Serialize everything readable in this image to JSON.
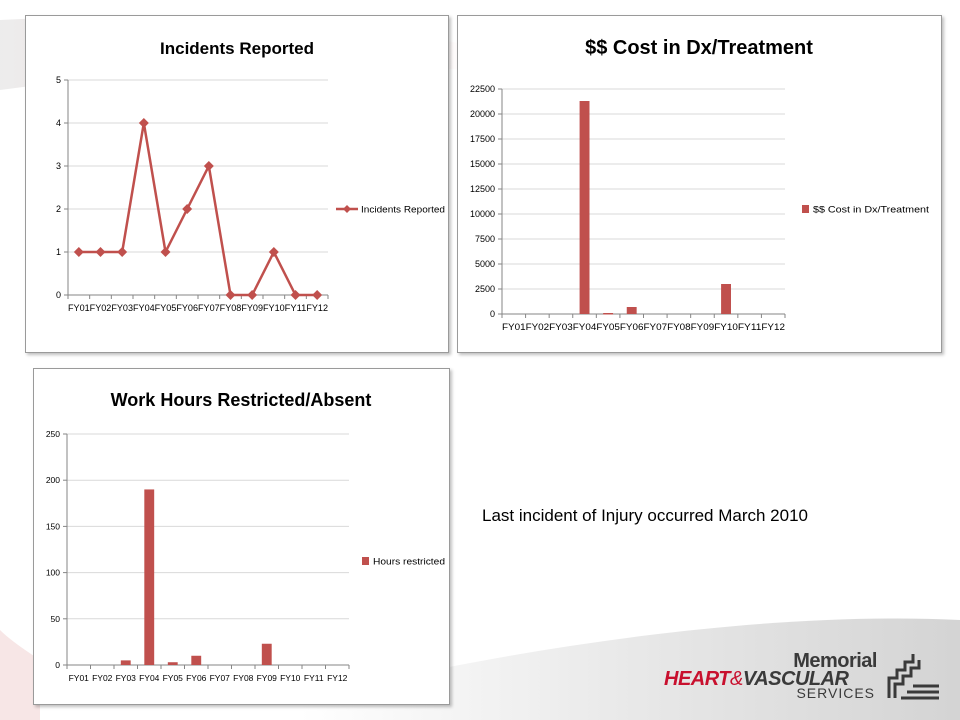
{
  "caption": "Last incident of Injury occurred March 2010",
  "logo": {
    "line1": "Memorial",
    "heart": "HEART",
    "amp": "&",
    "vascular": "VASCULAR",
    "services": "SERVICES"
  },
  "colors": {
    "series": "#c0504d",
    "grid": "#d9d9d9",
    "axis": "#868686",
    "brand_red": "#c8102e"
  },
  "chart_data": [
    {
      "type": "line",
      "title": "Incidents Reported",
      "categories": [
        "FY01",
        "FY02",
        "FY03",
        "FY04",
        "FY05",
        "FY06",
        "FY07",
        "FY08",
        "FY09",
        "FY10",
        "FY11",
        "FY12"
      ],
      "series": [
        {
          "name": "Incidents Reported",
          "values": [
            1,
            1,
            1,
            4,
            1,
            2,
            3,
            0,
            0,
            1,
            0,
            0
          ]
        }
      ],
      "ylim": [
        0,
        5
      ],
      "yticks": [
        0,
        1,
        2,
        3,
        4,
        5
      ],
      "grid": true,
      "legend": "right"
    },
    {
      "type": "bar",
      "title": "$$ Cost in Dx/Treatment",
      "categories": [
        "FY01",
        "FY02",
        "FY03",
        "FY04",
        "FY05",
        "FY06",
        "FY07",
        "FY08",
        "FY09",
        "FY10",
        "FY11",
        "FY12"
      ],
      "series": [
        {
          "name": "$$ Cost in Dx/Treatment",
          "values": [
            0,
            0,
            0,
            21300,
            100,
            700,
            0,
            0,
            0,
            3000,
            0,
            0
          ]
        }
      ],
      "ylim": [
        0,
        22500
      ],
      "yticks": [
        0,
        2500,
        5000,
        7500,
        10000,
        12500,
        15000,
        17500,
        20000,
        22500
      ],
      "grid": true,
      "legend": "right"
    },
    {
      "type": "bar",
      "title": "Work Hours Restricted/Absent",
      "categories": [
        "FY01",
        "FY02",
        "FY03",
        "FY04",
        "FY05",
        "FY06",
        "FY07",
        "FY08",
        "FY09",
        "FY10",
        "FY11",
        "FY12"
      ],
      "series": [
        {
          "name": "Hours restricted",
          "values": [
            0,
            0,
            5,
            190,
            3,
            10,
            0,
            0,
            23,
            0,
            0,
            0
          ]
        }
      ],
      "ylim": [
        0,
        250
      ],
      "yticks": [
        0,
        50,
        100,
        150,
        200,
        250
      ],
      "grid": true,
      "legend": "right"
    }
  ]
}
